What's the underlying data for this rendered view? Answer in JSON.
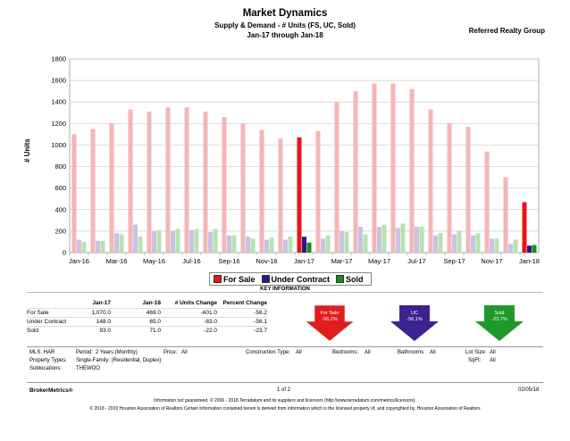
{
  "header": {
    "title": "Market Dynamics",
    "subtitle": "Supply & Demand - # Units (FS, UC, Sold)",
    "period": "Jan-17 through Jan-18",
    "brand": "Referred Realty Group"
  },
  "chart_data": {
    "type": "bar",
    "ylabel": "# Units",
    "ylim": [
      0,
      1800
    ],
    "yticks": [
      0,
      200,
      400,
      600,
      800,
      1000,
      1200,
      1400,
      1600,
      1800
    ],
    "grid": true,
    "legend_position": "bottom",
    "categories": [
      "Jan-16",
      "Feb-16",
      "Mar-16",
      "Apr-16",
      "May-16",
      "Jun-16",
      "Jul-16",
      "Aug-16",
      "Sep-16",
      "Oct-16",
      "Nov-16",
      "Dec-16",
      "Jan-17",
      "Feb-17",
      "Mar-17",
      "Apr-17",
      "May-17",
      "Jun-17",
      "Jul-17",
      "Aug-17",
      "Sep-17",
      "Oct-17",
      "Nov-17",
      "Dec-17",
      "Jan-18"
    ],
    "xtick_labels": [
      "Jan-16",
      "Mar-16",
      "May-16",
      "Jul-16",
      "Sep-16",
      "Nov-16",
      "Jan-17",
      "Mar-17",
      "May-17",
      "Jul-17",
      "Sep-17",
      "Nov-17",
      "Jan-18"
    ],
    "highlight_categories": [
      "Jan-17",
      "Jan-18"
    ],
    "series": [
      {
        "name": "For Sale",
        "color": "#e8151b",
        "faded_color": "#f4b6b6",
        "values": [
          1100,
          1150,
          1200,
          1330,
          1310,
          1350,
          1350,
          1310,
          1260,
          1200,
          1140,
          1060,
          1070,
          1130,
          1400,
          1500,
          1570,
          1570,
          1520,
          1330,
          1200,
          1170,
          940,
          700,
          469
        ]
      },
      {
        "name": "Under Contract",
        "color": "#2a1a8a",
        "faded_color": "#c9c2e4",
        "values": [
          120,
          110,
          180,
          260,
          200,
          200,
          210,
          190,
          160,
          150,
          120,
          120,
          148,
          130,
          200,
          240,
          240,
          230,
          240,
          160,
          170,
          160,
          130,
          80,
          65
        ]
      },
      {
        "name": "Sold",
        "color": "#1c8a1c",
        "faded_color": "#b8e2b0",
        "values": [
          100,
          110,
          170,
          150,
          210,
          220,
          220,
          220,
          160,
          130,
          140,
          150,
          93,
          160,
          190,
          170,
          260,
          270,
          240,
          180,
          200,
          180,
          130,
          120,
          71
        ]
      }
    ]
  },
  "key_info": {
    "heading": "KEY INFORMATION",
    "columns": [
      "",
      "Jan-17",
      "Jan-18",
      "# Units Change",
      "Percent Change"
    ],
    "rows": [
      {
        "label": "For Sale",
        "jan17": "1,070.0",
        "jan18": "469.0",
        "change": "-601.0",
        "pct": "-56.2"
      },
      {
        "label": "Under Contract",
        "jan17": "148.0",
        "jan18": "65.0",
        "change": "-83.0",
        "pct": "-56.1"
      },
      {
        "label": "Sold",
        "jan17": "93.0",
        "jan18": "71.0",
        "change": "-22.0",
        "pct": "-23.7"
      }
    ],
    "arrows": [
      {
        "label": "For Sale",
        "value": "-56.2%",
        "color": "#e01e1e"
      },
      {
        "label": "UC",
        "value": "-56.1%",
        "color": "#3b2391"
      },
      {
        "label": "Sold",
        "value": "-23.7%",
        "color": "#1f9a2a"
      }
    ]
  },
  "filters": {
    "mls": "MLS:  HAR",
    "period_label": "Period:",
    "period_value": "2 Years (Monthly)",
    "price_label": "Price:",
    "price_value": "All",
    "construction_label": "Construction Type:",
    "construction_value": "All",
    "bedrooms_label": "Bedrooms:",
    "bedrooms_value": "All",
    "bathrooms_label": "Bathrooms:",
    "bathrooms_value": "All",
    "lotsize_label": "Lot Size:",
    "lotsize_value": "All",
    "property_label": "Property Types:",
    "property_value": "Single-Family: (Residential, Duplex)",
    "sqft_label": "SqFt:",
    "sqft_value": "All",
    "subloc_label": "Sublocations:",
    "subloc_value": "THEWOO"
  },
  "footer": {
    "left": "BrokerMetrics®",
    "center": "1 of 2",
    "right": "02/05/18",
    "disclaimer1": "Information not guaranteed. © 2006 - 2018 Terradatum and its suppliers and licensors (http://www.terradatum.com/metrics/licensors).",
    "disclaimer2": "© 2018 - 2019 Houston Association of Realtors Certain information contained herein is derived from information which is the licensed property of, and copyrighted by, Houston Association of Realtors"
  }
}
